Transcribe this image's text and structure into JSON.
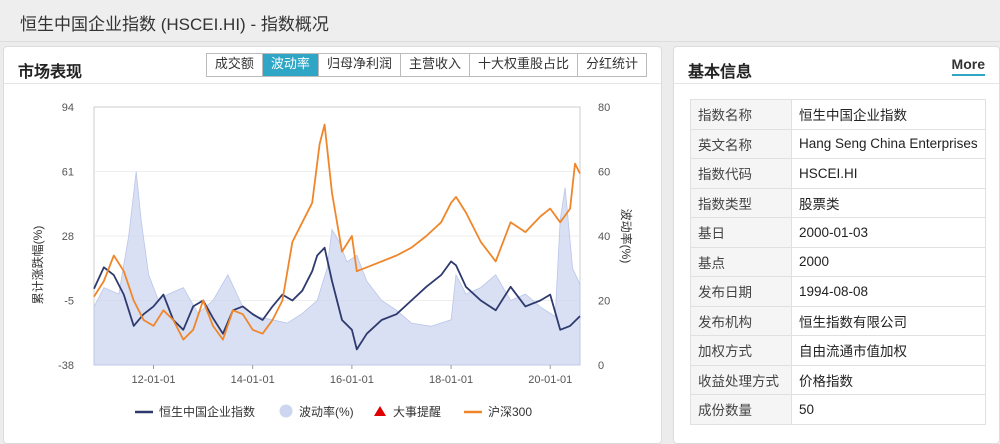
{
  "page": {
    "title": "恒生中国企业指数 (HSCEI.HI) - 指数概况"
  },
  "market": {
    "title": "市场表现",
    "tabs": [
      "成交额",
      "波动率",
      "归母净利润",
      "主营收入",
      "十大权重股占比",
      "分红统计"
    ],
    "active_tab": 1
  },
  "colors": {
    "accent": "#2fa6c6",
    "index_line": "#2e3a6e",
    "volatility_fill": "#ccd6f0",
    "csi300_line": "#f0862a",
    "event_marker": "#e00000"
  },
  "chart_data": {
    "type": "line",
    "ylabel_left": "累计涨跌幅(%)",
    "ylabel_right": "波动率(%)",
    "yticks_left": [
      "94",
      "61",
      "28",
      "-5",
      "-38"
    ],
    "yticks_right": [
      "80",
      "60",
      "40",
      "20",
      "0"
    ],
    "ylim_left": [
      -38,
      94
    ],
    "ylim_right": [
      0,
      80
    ],
    "xticks": [
      "12-01-01",
      "14-01-01",
      "16-01-01",
      "18-01-01",
      "20-01-01"
    ],
    "xtick_years": [
      2012,
      2014,
      2016,
      2018,
      2020
    ],
    "xlim_years": [
      2010.8,
      2020.6
    ],
    "legend": [
      "恒生中国企业指数",
      "波动率(%)",
      "大事提醒",
      "沪深300"
    ],
    "series": [
      {
        "name": "恒生中国企业指数",
        "axis": "left",
        "x": [
          2010.8,
          2011.0,
          2011.2,
          2011.4,
          2011.6,
          2011.8,
          2012.0,
          2012.2,
          2012.4,
          2012.6,
          2012.8,
          2013.0,
          2013.2,
          2013.4,
          2013.6,
          2013.8,
          2014.0,
          2014.2,
          2014.4,
          2014.6,
          2014.8,
          2015.0,
          2015.2,
          2015.3,
          2015.45,
          2015.6,
          2015.8,
          2016.0,
          2016.1,
          2016.3,
          2016.6,
          2016.9,
          2017.2,
          2017.5,
          2017.8,
          2018.0,
          2018.1,
          2018.3,
          2018.6,
          2018.9,
          2019.2,
          2019.5,
          2019.8,
          2020.0,
          2020.2,
          2020.4,
          2020.6
        ],
        "y": [
          1,
          12,
          8,
          -2,
          -18,
          -12,
          -8,
          -2,
          -15,
          -20,
          -8,
          -5,
          -14,
          -22,
          -10,
          -8,
          -12,
          -15,
          -8,
          -2,
          -5,
          0,
          10,
          18,
          22,
          5,
          -15,
          -20,
          -30,
          -22,
          -15,
          -12,
          -5,
          2,
          8,
          15,
          13,
          2,
          -5,
          -10,
          2,
          -8,
          -5,
          -2,
          -20,
          -18,
          -13
        ]
      },
      {
        "name": "沪深300",
        "axis": "left",
        "x": [
          2010.8,
          2011.0,
          2011.2,
          2011.4,
          2011.6,
          2011.8,
          2012.0,
          2012.2,
          2012.4,
          2012.6,
          2012.8,
          2013.0,
          2013.2,
          2013.4,
          2013.6,
          2013.8,
          2014.0,
          2014.2,
          2014.4,
          2014.6,
          2014.8,
          2015.0,
          2015.2,
          2015.35,
          2015.45,
          2015.6,
          2015.8,
          2016.0,
          2016.1,
          2016.3,
          2016.6,
          2016.9,
          2017.2,
          2017.5,
          2017.8,
          2018.0,
          2018.1,
          2018.3,
          2018.6,
          2018.9,
          2019.2,
          2019.5,
          2019.8,
          2020.0,
          2020.2,
          2020.4,
          2020.5,
          2020.6
        ],
        "y": [
          -3,
          5,
          18,
          10,
          -5,
          -15,
          -18,
          -10,
          -15,
          -25,
          -20,
          -5,
          -18,
          -25,
          -10,
          -12,
          -20,
          -22,
          -15,
          -5,
          25,
          35,
          45,
          75,
          85,
          50,
          20,
          28,
          10,
          12,
          15,
          18,
          22,
          28,
          35,
          45,
          48,
          40,
          25,
          15,
          35,
          30,
          38,
          42,
          35,
          42,
          65,
          60
        ]
      }
    ],
    "volatility": {
      "name": "波动率(%)",
      "axis": "right",
      "x": [
        2010.8,
        2011.0,
        2011.3,
        2011.5,
        2011.65,
        2011.75,
        2011.9,
        2012.1,
        2012.3,
        2012.6,
        2012.9,
        2013.2,
        2013.5,
        2013.8,
        2014.1,
        2014.4,
        2014.7,
        2015.0,
        2015.3,
        2015.5,
        2015.6,
        2015.75,
        2015.9,
        2016.1,
        2016.3,
        2016.6,
        2016.9,
        2017.2,
        2017.6,
        2018.0,
        2018.1,
        2018.3,
        2018.6,
        2018.9,
        2019.2,
        2019.5,
        2019.8,
        2020.1,
        2020.2,
        2020.3,
        2020.45,
        2020.6
      ],
      "y": [
        18,
        24,
        22,
        40,
        60,
        45,
        28,
        20,
        22,
        24,
        16,
        20,
        28,
        18,
        15,
        14,
        13,
        16,
        20,
        30,
        42,
        38,
        32,
        34,
        26,
        20,
        17,
        13,
        12,
        14,
        28,
        22,
        24,
        28,
        20,
        22,
        18,
        15,
        45,
        55,
        30,
        25
      ]
    }
  },
  "info": {
    "title": "基本信息",
    "more": "More",
    "rows": [
      {
        "k": "指数名称",
        "v": "恒生中国企业指数"
      },
      {
        "k": "英文名称",
        "v": "Hang Seng China Enterprises"
      },
      {
        "k": "指数代码",
        "v": "HSCEI.HI"
      },
      {
        "k": "指数类型",
        "v": "股票类"
      },
      {
        "k": "基日",
        "v": "2000-01-03"
      },
      {
        "k": "基点",
        "v": "2000"
      },
      {
        "k": "发布日期",
        "v": "1994-08-08"
      },
      {
        "k": "发布机构",
        "v": "恒生指数有限公司"
      },
      {
        "k": "加权方式",
        "v": "自由流通市值加权"
      },
      {
        "k": "收益处理方式",
        "v": "价格指数"
      },
      {
        "k": "成份数量",
        "v": "50"
      }
    ]
  }
}
